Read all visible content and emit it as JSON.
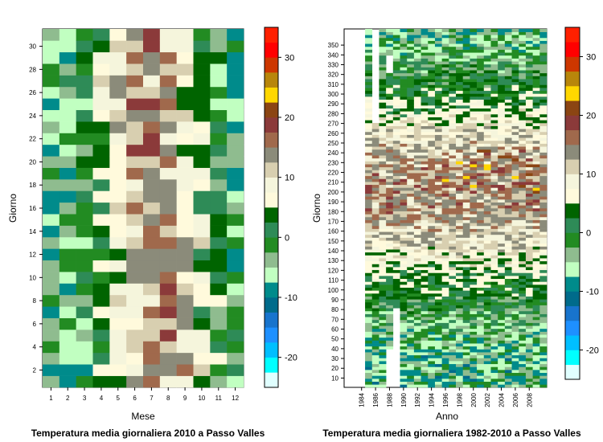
{
  "chart_data": [
    {
      "type": "heatmap",
      "title": "Temperatura media giornaliera 2010 a Passo Valles",
      "xlabel": "Mese",
      "ylabel": "Giorno",
      "x_ticks": [
        "1",
        "2",
        "3",
        "4",
        "5",
        "6",
        "7",
        "8",
        "9",
        "10",
        "11",
        "12"
      ],
      "y_ticks": [
        "2",
        "4",
        "6",
        "8",
        "10",
        "12",
        "14",
        "16",
        "18",
        "20",
        "22",
        "24",
        "26",
        "28",
        "30"
      ],
      "x_range": [
        1,
        12
      ],
      "y_range": [
        1,
        31
      ],
      "colorbar": {
        "range": [
          -25,
          35
        ],
        "step": 2.5,
        "ticks": [
          "-20",
          "-10",
          "0",
          "10",
          "20",
          "30"
        ]
      }
    },
    {
      "type": "heatmap",
      "title": "Temperatura media giornaliera 1982-2010 a Passo Valles",
      "xlabel": "Anno",
      "ylabel": "Giorno",
      "x_ticks": [
        "1984",
        "1986",
        "1988",
        "1990",
        "1992",
        "1994",
        "1996",
        "1998",
        "2000",
        "2002",
        "2004",
        "2006",
        "2008"
      ],
      "y_ticks": [
        "10",
        "20",
        "30",
        "40",
        "50",
        "60",
        "70",
        "80",
        "90",
        "100",
        "110",
        "120",
        "130",
        "140",
        "150",
        "160",
        "170",
        "180",
        "190",
        "200",
        "210",
        "220",
        "230",
        "240",
        "250",
        "260",
        "270",
        "280",
        "290",
        "300",
        "310",
        "320",
        "330",
        "340",
        "350"
      ],
      "x_range": [
        1982,
        2010
      ],
      "y_range": [
        1,
        366
      ],
      "colorbar": {
        "range": [
          -25,
          35
        ],
        "step": 2.5,
        "ticks": [
          "-20",
          "-10",
          "0",
          "10",
          "20",
          "30"
        ]
      }
    }
  ],
  "palette": [
    "#e0ffff",
    "#00ffff",
    "#00bfff",
    "#1e90ff",
    "#1874cd",
    "#006b8b",
    "#008b8b",
    "#c1ffc1",
    "#8fbc8f",
    "#228b22",
    "#2e8b57",
    "#006400",
    "#fffadc",
    "#f5f5dc",
    "#d8cfb0",
    "#8b8b7a",
    "#a0694c",
    "#8b3a3a",
    "#8b4513",
    "#ffd700",
    "#b8860b",
    "#cd3700",
    "#ff0000",
    "#ff2000"
  ]
}
